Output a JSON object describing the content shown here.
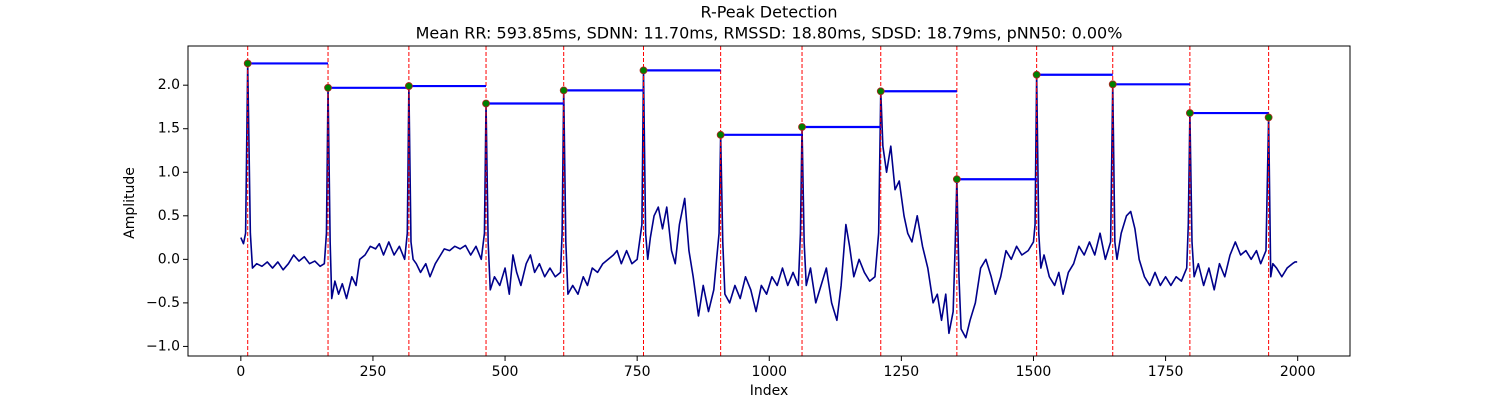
{
  "chart_data": {
    "type": "line",
    "title": "R-Peak Detection",
    "subtitle": "Mean RR: 593.85ms, SDNN: 11.70ms, RMSSD: 18.80ms, SDSD: 18.79ms, pNN50: 0.00%",
    "x_label": "Index",
    "y_label": "Amplitude",
    "xlim": [
      -100,
      2099
    ],
    "ylim": [
      -1.11,
      2.45
    ],
    "xticks": [
      0,
      250,
      500,
      750,
      1000,
      1250,
      1500,
      1750,
      2000
    ],
    "yticks": [
      {
        "value": -1,
        "label": "−1.0"
      },
      {
        "value": -0.5,
        "label": "−0.5"
      },
      {
        "value": 0,
        "label": "0.0"
      },
      0.5,
      {
        "value": 1,
        "label": "1.0"
      },
      1.5,
      {
        "value": 2,
        "label": "2.0"
      }
    ],
    "series": [
      {
        "color": "#00008b",
        "x": [
          0,
          5,
          9,
          13,
          18,
          22,
          30,
          40,
          50,
          60,
          70,
          80,
          90,
          100,
          110,
          120,
          130,
          140,
          150,
          158,
          162,
          165,
          169,
          172,
          178,
          185,
          192,
          200,
          210,
          218,
          225,
          235,
          245,
          255,
          262,
          270,
          280,
          290,
          300,
          310,
          315,
          318,
          322,
          326,
          332,
          340,
          350,
          358,
          368,
          378,
          385,
          395,
          405,
          415,
          425,
          435,
          445,
          455,
          461,
          464,
          468,
          472,
          480,
          490,
          500,
          508,
          515,
          522,
          530,
          540,
          548,
          556,
          565,
          575,
          585,
          595,
          605,
          608,
          611,
          615,
          619,
          628,
          638,
          648,
          656,
          665,
          675,
          685,
          695,
          705,
          712,
          720,
          730,
          740,
          750,
          759,
          762,
          766,
          770,
          775,
          782,
          790,
          798,
          806,
          815,
          822,
          830,
          840,
          848,
          856,
          866,
          875,
          885,
          895,
          905,
          908,
          912,
          916,
          925,
          935,
          945,
          955,
          965,
          975,
          985,
          995,
          1005,
          1015,
          1025,
          1035,
          1045,
          1055,
          1059,
          1062,
          1066,
          1070,
          1078,
          1088,
          1098,
          1108,
          1118,
          1128,
          1136,
          1145,
          1152,
          1160,
          1170,
          1180,
          1190,
          1200,
          1207,
          1211,
          1215,
          1222,
          1230,
          1238,
          1246,
          1255,
          1262,
          1270,
          1280,
          1290,
          1300,
          1310,
          1318,
          1326,
          1334,
          1340,
          1348,
          1352,
          1355,
          1359,
          1363,
          1372,
          1380,
          1390,
          1400,
          1410,
          1420,
          1428,
          1438,
          1448,
          1458,
          1468,
          1478,
          1490,
          1500,
          1503,
          1506,
          1510,
          1514,
          1520,
          1530,
          1540,
          1548,
          1556,
          1566,
          1576,
          1586,
          1596,
          1606,
          1616,
          1626,
          1636,
          1646,
          1650,
          1654,
          1658,
          1666,
          1676,
          1684,
          1692,
          1700,
          1710,
          1720,
          1730,
          1740,
          1750,
          1760,
          1770,
          1780,
          1790,
          1793,
          1796,
          1800,
          1804,
          1812,
          1822,
          1832,
          1842,
          1852,
          1862,
          1872,
          1882,
          1892,
          1902,
          1912,
          1922,
          1930,
          1940,
          1945,
          1949,
          1953,
          1960,
          1970,
          1980,
          1990,
          1995,
          1999
        ],
        "values": [
          0.25,
          0.18,
          0.3,
          2.25,
          0.3,
          -0.1,
          -0.05,
          -0.08,
          -0.03,
          -0.1,
          -0.03,
          -0.12,
          -0.05,
          0.05,
          -0.02,
          0.03,
          -0.05,
          -0.02,
          -0.08,
          -0.05,
          0.3,
          1.97,
          0.2,
          -0.45,
          -0.25,
          -0.4,
          -0.28,
          -0.45,
          -0.2,
          -0.3,
          0.0,
          0.05,
          0.15,
          0.12,
          0.18,
          0.05,
          0.2,
          0.05,
          0.15,
          0.0,
          0.3,
          1.99,
          0.2,
          0.0,
          -0.05,
          -0.15,
          -0.05,
          -0.2,
          -0.05,
          0.05,
          0.12,
          0.1,
          0.15,
          0.12,
          0.16,
          0.05,
          0.15,
          0.0,
          0.3,
          1.79,
          0.2,
          -0.35,
          -0.2,
          -0.3,
          -0.1,
          -0.4,
          0.05,
          -0.15,
          -0.3,
          -0.05,
          0.05,
          -0.15,
          -0.05,
          -0.2,
          -0.1,
          -0.2,
          -0.15,
          0.3,
          1.94,
          0.2,
          -0.4,
          -0.3,
          -0.4,
          -0.2,
          -0.3,
          -0.1,
          -0.15,
          -0.05,
          0.0,
          0.05,
          0.1,
          -0.05,
          0.1,
          -0.05,
          0.0,
          0.4,
          2.17,
          0.3,
          0.0,
          0.25,
          0.5,
          0.6,
          0.35,
          0.6,
          0.1,
          -0.05,
          0.4,
          0.7,
          0.1,
          -0.2,
          -0.65,
          -0.3,
          -0.6,
          -0.35,
          0.3,
          1.43,
          0.2,
          -0.4,
          -0.5,
          -0.3,
          -0.45,
          -0.2,
          -0.35,
          -0.6,
          -0.3,
          -0.4,
          -0.2,
          -0.3,
          -0.1,
          -0.3,
          -0.15,
          -0.3,
          0.3,
          1.52,
          0.2,
          -0.3,
          -0.1,
          -0.5,
          -0.3,
          -0.1,
          -0.5,
          -0.7,
          -0.3,
          0.4,
          0.15,
          -0.2,
          0.0,
          -0.15,
          -0.25,
          -0.2,
          0.3,
          1.93,
          1.3,
          1.0,
          1.3,
          0.8,
          0.9,
          0.5,
          0.3,
          0.2,
          0.5,
          0.15,
          -0.1,
          -0.5,
          -0.4,
          -0.7,
          -0.4,
          -0.85,
          -0.6,
          0.2,
          0.92,
          -0.2,
          -0.8,
          -0.9,
          -0.7,
          -0.5,
          -0.1,
          0.0,
          -0.2,
          -0.4,
          -0.2,
          0.1,
          0.0,
          0.15,
          0.05,
          0.1,
          0.2,
          0.4,
          2.12,
          0.3,
          -0.1,
          0.05,
          -0.2,
          -0.3,
          -0.15,
          -0.4,
          -0.15,
          -0.05,
          0.15,
          0.05,
          0.2,
          0.05,
          0.3,
          0.0,
          0.2,
          2.01,
          0.2,
          0.0,
          0.3,
          0.5,
          0.55,
          0.35,
          0.0,
          -0.2,
          -0.3,
          -0.15,
          -0.3,
          -0.2,
          -0.3,
          -0.2,
          -0.25,
          -0.1,
          0.4,
          1.68,
          0.2,
          -0.2,
          -0.05,
          -0.3,
          -0.1,
          -0.35,
          -0.05,
          -0.2,
          0.05,
          0.2,
          0.05,
          0.1,
          0.0,
          0.1,
          -0.05,
          0.1,
          1.63,
          -0.2,
          -0.05,
          -0.1,
          -0.2,
          -0.1,
          -0.05,
          -0.03,
          -0.03
        ]
      }
    ],
    "peaks": {
      "color": "green",
      "edge_color": "#b22222",
      "line_color": "red",
      "interval_color": "blue",
      "x": [
        13,
        165,
        318,
        464,
        611,
        762,
        908,
        1062,
        1211,
        1355,
        1506,
        1650,
        1796,
        1945
      ],
      "values": [
        2.25,
        1.97,
        1.99,
        1.79,
        1.94,
        2.17,
        1.43,
        1.52,
        1.93,
        0.92,
        2.12,
        2.01,
        1.68,
        1.63
      ]
    }
  }
}
